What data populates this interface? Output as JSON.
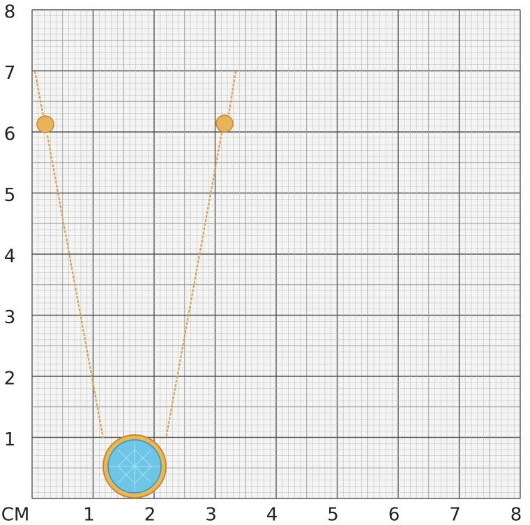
{
  "unit": "СМ",
  "x_labels": [
    "1",
    "2",
    "3",
    "4",
    "5",
    "6",
    "7",
    "8"
  ],
  "y_labels": [
    "1",
    "2",
    "3",
    "4",
    "5",
    "6",
    "7",
    "8"
  ]
}
